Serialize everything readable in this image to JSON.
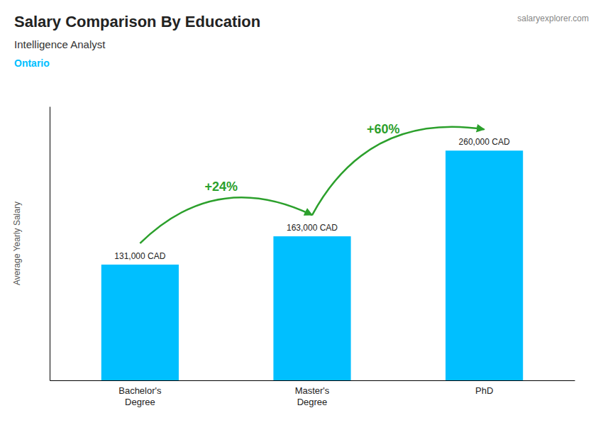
{
  "chart_data": {
    "type": "bar",
    "title": "Salary Comparison By Education",
    "subtitle": "Intelligence Analyst",
    "location": "Ontario",
    "watermark": "salaryexplorer.com",
    "ylabel": "Average Yearly Salary",
    "categories": [
      "Bachelor's\nDegree",
      "Master's\nDegree",
      "PhD"
    ],
    "values": [
      131000,
      163000,
      260000
    ],
    "value_labels": [
      "131,000 CAD",
      "163,000 CAD",
      "260,000 CAD"
    ],
    "data_labels": true,
    "color": "#00BFFF",
    "annotations": [
      "+24%",
      "+60%"
    ],
    "ylim": [
      0,
      310000
    ],
    "tick_labels": "x"
  }
}
